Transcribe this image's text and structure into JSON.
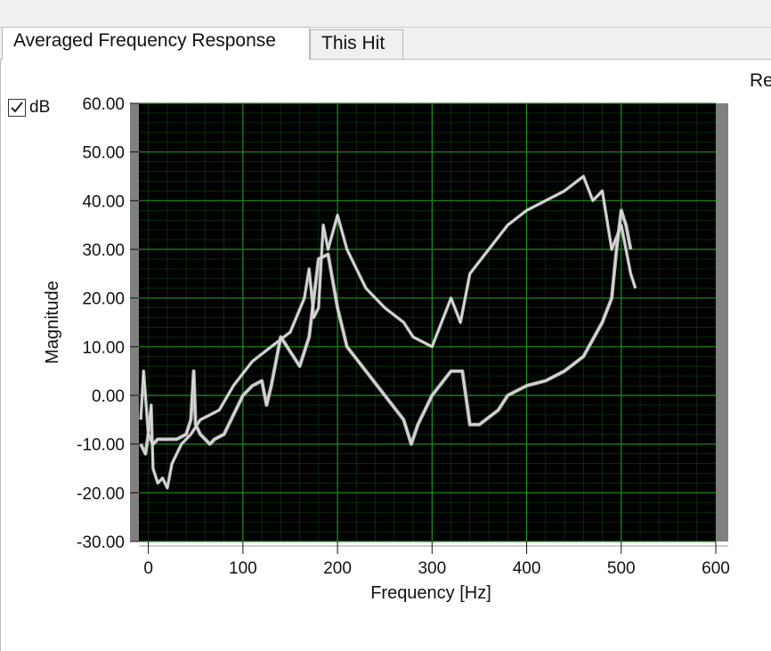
{
  "tabs": [
    {
      "label": "Averaged Frequency Response",
      "active": true
    },
    {
      "label": "This Hit",
      "active": false
    }
  ],
  "clipped_label": "Re",
  "db_toggle": {
    "label": "dB",
    "checked": true
  },
  "colors": {
    "plot_bg": "#000000",
    "grid": "#1f8f1f",
    "trace": "#c8c8c8",
    "highlight": "#ffffff"
  },
  "chart_data": {
    "type": "line",
    "title": "",
    "xlabel": "Frequency [Hz]",
    "ylabel": "Magnitude",
    "xlim": [
      -10,
      600
    ],
    "ylim": [
      -30,
      60
    ],
    "x_ticks": [
      0,
      100,
      200,
      300,
      400,
      500,
      600
    ],
    "y_ticks": [
      "-30.00",
      "-20.00",
      "-10.00",
      "0.00",
      "10.00",
      "20.00",
      "30.00",
      "40.00",
      "50.00",
      "60.00"
    ],
    "grid": true,
    "series": [
      {
        "points": [
          [
            -8,
            -5
          ],
          [
            -5,
            5
          ],
          [
            0,
            -8
          ],
          [
            3,
            -2
          ],
          [
            5,
            -15
          ],
          [
            10,
            -18
          ],
          [
            15,
            -17
          ],
          [
            20,
            -19
          ],
          [
            25,
            -14
          ],
          [
            35,
            -10
          ],
          [
            45,
            -8
          ],
          [
            55,
            -5
          ],
          [
            65,
            -4
          ],
          [
            75,
            -3
          ],
          [
            90,
            2
          ],
          [
            110,
            7
          ],
          [
            130,
            10
          ],
          [
            150,
            13
          ],
          [
            165,
            20
          ],
          [
            170,
            26
          ],
          [
            175,
            16
          ],
          [
            180,
            18
          ],
          [
            185,
            35
          ],
          [
            190,
            30
          ],
          [
            200,
            37
          ],
          [
            210,
            30
          ],
          [
            230,
            22
          ],
          [
            250,
            18
          ],
          [
            270,
            15
          ],
          [
            280,
            12
          ],
          [
            300,
            10
          ],
          [
            320,
            20
          ],
          [
            330,
            15
          ],
          [
            340,
            25
          ],
          [
            360,
            30
          ],
          [
            380,
            35
          ],
          [
            400,
            38
          ],
          [
            420,
            40
          ],
          [
            440,
            42
          ],
          [
            460,
            45
          ],
          [
            470,
            40
          ],
          [
            480,
            42
          ],
          [
            490,
            30
          ],
          [
            500,
            35
          ],
          [
            510,
            25
          ],
          [
            515,
            22
          ]
        ]
      },
      {
        "points": [
          [
            -8,
            -10
          ],
          [
            -3,
            -12
          ],
          [
            0,
            -8
          ],
          [
            5,
            -10
          ],
          [
            10,
            -9
          ],
          [
            20,
            -9
          ],
          [
            30,
            -9
          ],
          [
            40,
            -8
          ],
          [
            45,
            -5
          ],
          [
            48,
            5
          ],
          [
            50,
            -6
          ],
          [
            55,
            -8
          ],
          [
            60,
            -9
          ],
          [
            65,
            -10
          ],
          [
            70,
            -9
          ],
          [
            80,
            -8
          ],
          [
            90,
            -4
          ],
          [
            100,
            0
          ],
          [
            110,
            2
          ],
          [
            120,
            3
          ],
          [
            125,
            -2
          ],
          [
            130,
            2
          ],
          [
            140,
            12
          ],
          [
            150,
            9
          ],
          [
            160,
            6
          ],
          [
            170,
            12
          ],
          [
            180,
            28
          ],
          [
            190,
            29
          ],
          [
            200,
            18
          ],
          [
            210,
            10
          ],
          [
            230,
            5
          ],
          [
            250,
            0
          ],
          [
            270,
            -5
          ],
          [
            278,
            -10
          ],
          [
            285,
            -6
          ],
          [
            300,
            0
          ],
          [
            320,
            5
          ],
          [
            332,
            5
          ],
          [
            340,
            -6
          ],
          [
            350,
            -6
          ],
          [
            370,
            -3
          ],
          [
            380,
            0
          ],
          [
            400,
            2
          ],
          [
            420,
            3
          ],
          [
            440,
            5
          ],
          [
            460,
            8
          ],
          [
            480,
            15
          ],
          [
            490,
            20
          ],
          [
            495,
            30
          ],
          [
            500,
            38
          ],
          [
            505,
            35
          ],
          [
            510,
            30
          ]
        ]
      }
    ]
  }
}
